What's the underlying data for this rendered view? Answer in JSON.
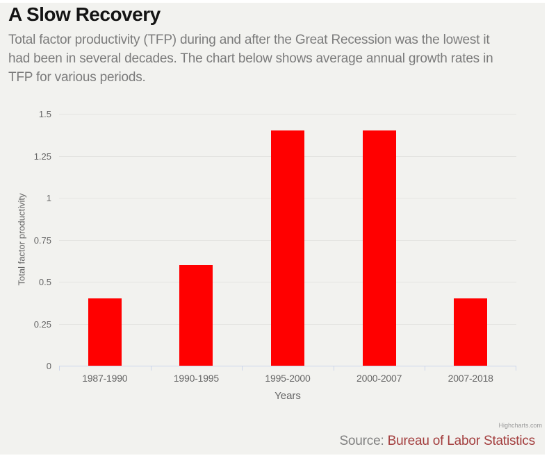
{
  "header": {
    "title": "A Slow Recovery",
    "subtitle_lines": [
      "Total factor productivity (TFP) during and after the Great Recession was the lowest it",
      "had been in several decades. The chart below shows average annual growth rates in",
      "TFP for various periods."
    ]
  },
  "chart_data": {
    "type": "bar",
    "categories": [
      "1987-1990",
      "1990-1995",
      "1995-2000",
      "2000-2007",
      "2007-2018"
    ],
    "values": [
      0.4,
      0.6,
      1.4,
      1.4,
      0.4
    ],
    "title": "",
    "xlabel": "Years",
    "ylabel": "Total factor productivity",
    "ylim": [
      0,
      1.5
    ],
    "yticks": [
      "0",
      "0.25",
      "0.5",
      "0.75",
      "1",
      "1.25",
      "1.5"
    ],
    "grid": "horizontal",
    "legend": "none",
    "bar_color": "#ff0000"
  },
  "credits": {
    "text": "Highcharts.com"
  },
  "source": {
    "label": "Source:",
    "link_text": "Bureau of Labor Statistics"
  },
  "colors": {
    "page_background": "#ffffff",
    "card_background": "#f2f2ef",
    "title_text": "#141414",
    "subtitle_text": "#7b7b7b",
    "axis_text": "#666666",
    "gridline": "#e4e4e1",
    "axis_line": "#ccd6eb",
    "bar": "#ff0000",
    "credits_text": "#999999",
    "source_label": "#808080",
    "source_link": "#a33e3e"
  }
}
